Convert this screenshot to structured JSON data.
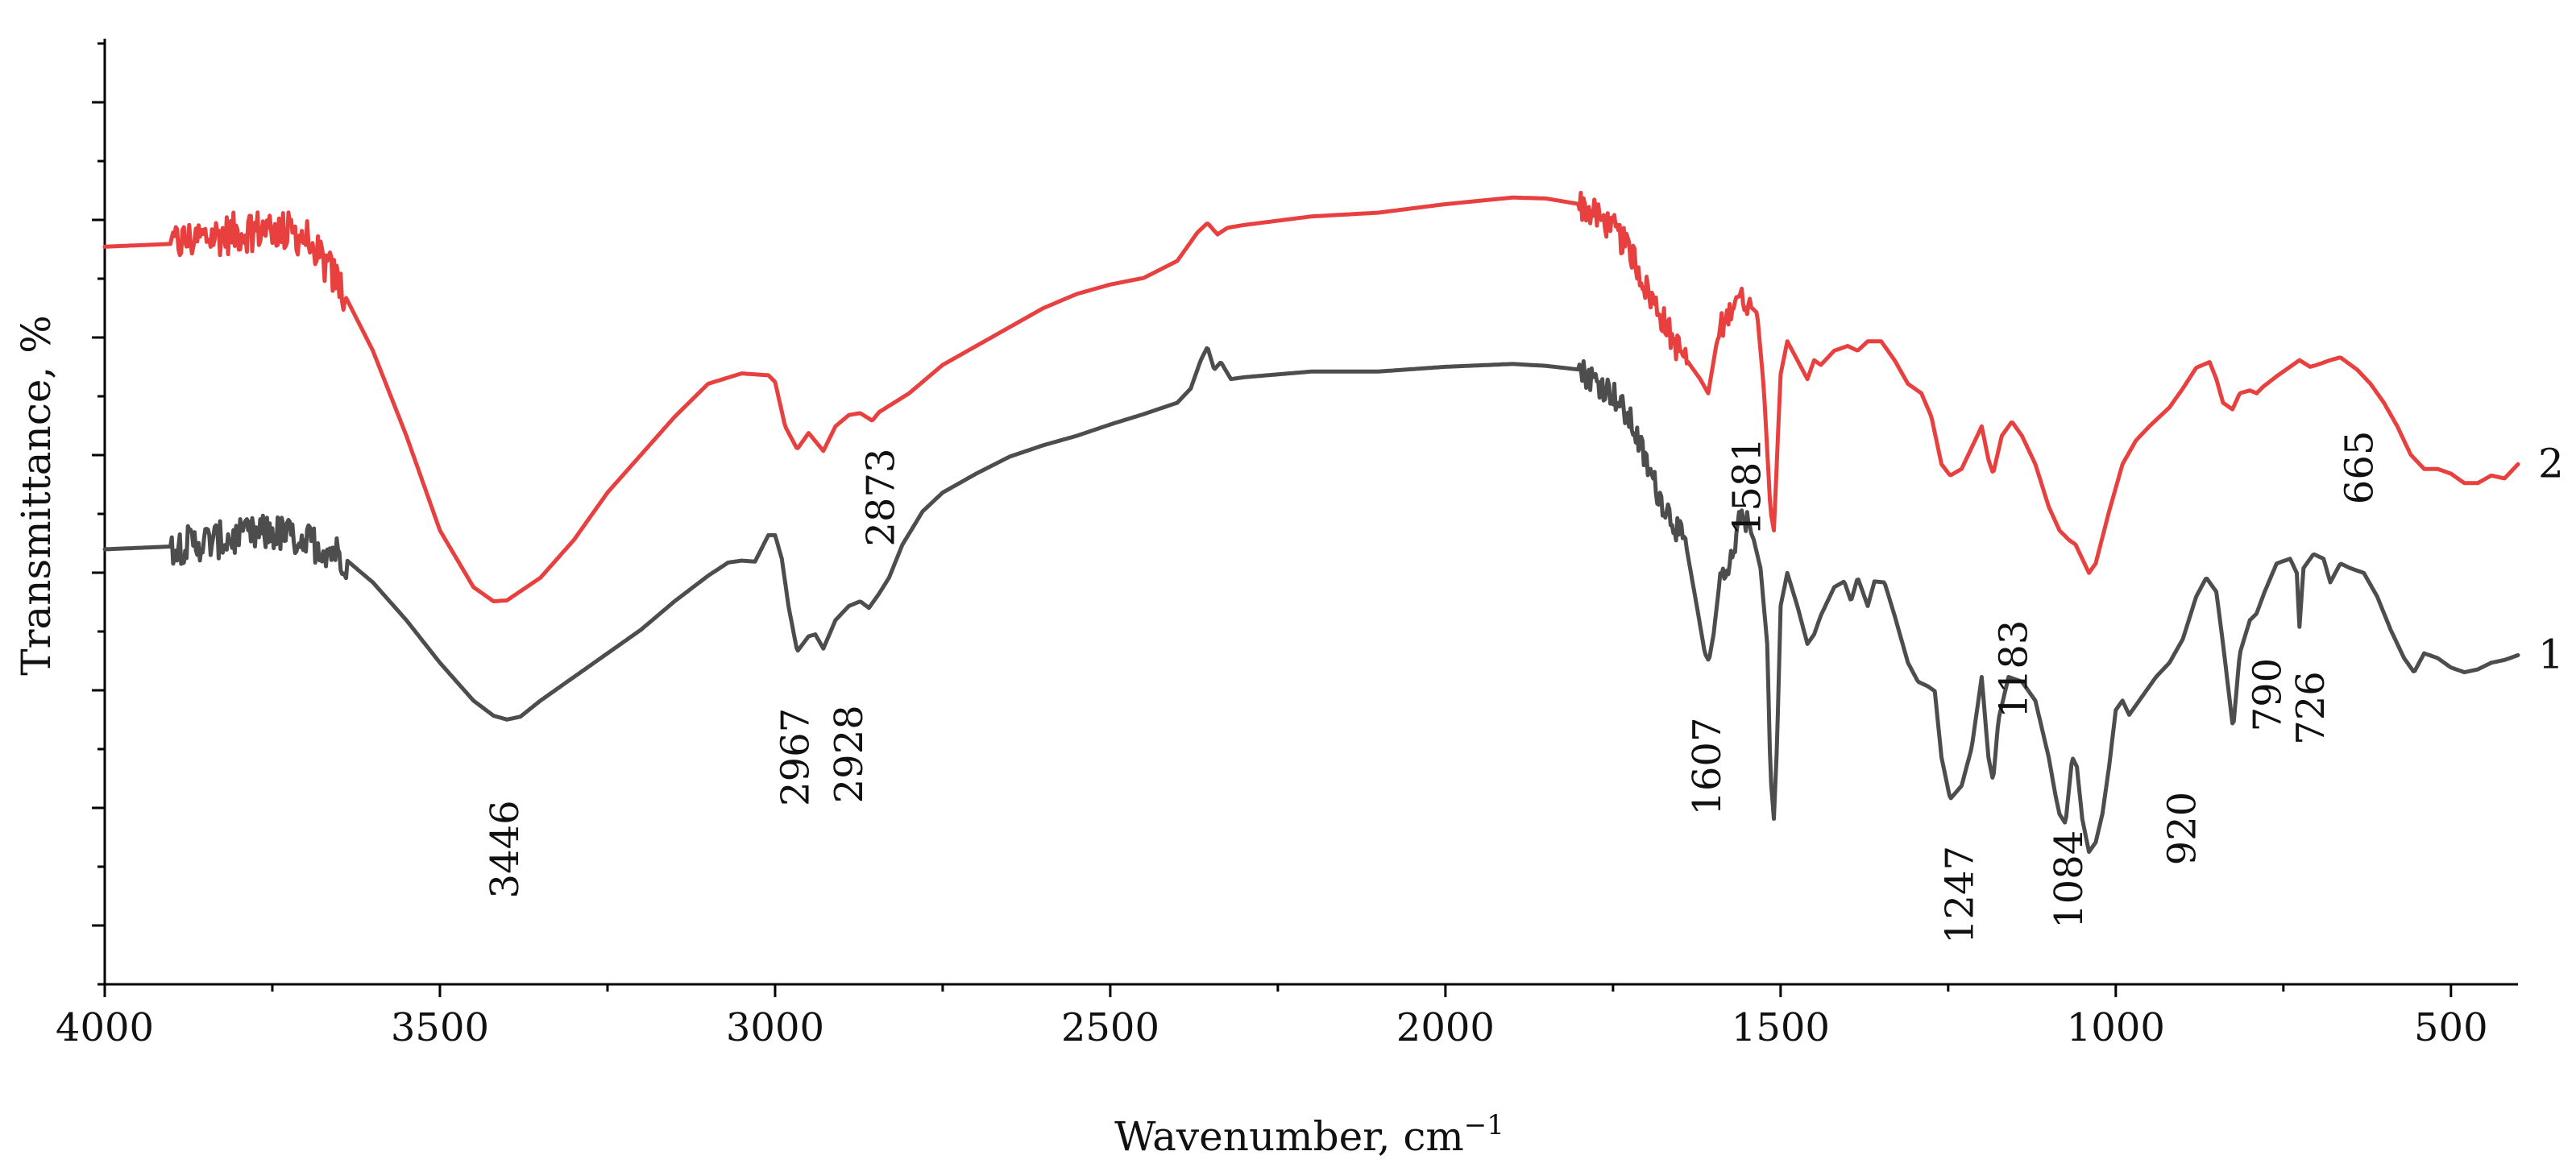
{
  "chart_data": {
    "type": "line",
    "title": "",
    "xlabel": "Wavenumber, cm",
    "xlabel_superscript": "−1",
    "ylabel": "Transmittance, %",
    "xlim": [
      4000,
      400
    ],
    "x_reversed": true,
    "xticks": [
      4000,
      3500,
      3000,
      2500,
      2000,
      1500,
      1000,
      500
    ],
    "ylim": [
      0,
      100
    ],
    "grid": false,
    "legend": "labels at right end of curves",
    "series": [
      {
        "name": "2",
        "color": "#e8403f",
        "noise_regions": [
          [
            3900,
            3640,
            2.2
          ],
          [
            1800,
            1640,
            1.6
          ],
          [
            1590,
            1545,
            1.2
          ]
        ],
        "points": [
          [
            4000,
            78
          ],
          [
            3900,
            78.3
          ],
          [
            3850,
            79
          ],
          [
            3800,
            79.5
          ],
          [
            3750,
            80
          ],
          [
            3700,
            79
          ],
          [
            3650,
            74
          ],
          [
            3600,
            67
          ],
          [
            3550,
            58
          ],
          [
            3500,
            48
          ],
          [
            3450,
            42
          ],
          [
            3420,
            40.5
          ],
          [
            3400,
            40.6
          ],
          [
            3350,
            43
          ],
          [
            3300,
            47
          ],
          [
            3250,
            52
          ],
          [
            3200,
            56
          ],
          [
            3150,
            60
          ],
          [
            3100,
            63.5
          ],
          [
            3050,
            64.6
          ],
          [
            3010,
            64.4
          ],
          [
            3000,
            63.7
          ],
          [
            2985,
            59
          ],
          [
            2967,
            56.6
          ],
          [
            2950,
            58.3
          ],
          [
            2928,
            56.4
          ],
          [
            2910,
            59
          ],
          [
            2890,
            60.2
          ],
          [
            2873,
            60.4
          ],
          [
            2855,
            59.6
          ],
          [
            2845,
            60.5
          ],
          [
            2800,
            62.5
          ],
          [
            2750,
            65.5
          ],
          [
            2700,
            67.5
          ],
          [
            2650,
            69.5
          ],
          [
            2600,
            71.5
          ],
          [
            2550,
            73
          ],
          [
            2500,
            74
          ],
          [
            2450,
            74.7
          ],
          [
            2400,
            76.5
          ],
          [
            2370,
            79.5
          ],
          [
            2355,
            80.5
          ],
          [
            2340,
            79.3
          ],
          [
            2325,
            80
          ],
          [
            2300,
            80.3
          ],
          [
            2200,
            81.2
          ],
          [
            2100,
            81.6
          ],
          [
            2000,
            82.5
          ],
          [
            1900,
            83.2
          ],
          [
            1850,
            83.1
          ],
          [
            1800,
            82.5
          ],
          [
            1750,
            80
          ],
          [
            1720,
            77
          ],
          [
            1700,
            73.5
          ],
          [
            1680,
            71
          ],
          [
            1660,
            68
          ],
          [
            1640,
            66
          ],
          [
            1620,
            64
          ],
          [
            1608,
            62.5
          ],
          [
            1595,
            68
          ],
          [
            1581,
            70.3
          ],
          [
            1565,
            73
          ],
          [
            1550,
            72
          ],
          [
            1535,
            71
          ],
          [
            1525,
            63
          ],
          [
            1515,
            50
          ],
          [
            1510,
            48
          ],
          [
            1500,
            64.5
          ],
          [
            1490,
            68
          ],
          [
            1475,
            66
          ],
          [
            1460,
            64
          ],
          [
            1450,
            66
          ],
          [
            1440,
            65.5
          ],
          [
            1420,
            67
          ],
          [
            1400,
            67.5
          ],
          [
            1385,
            67
          ],
          [
            1370,
            68
          ],
          [
            1350,
            68
          ],
          [
            1330,
            66
          ],
          [
            1310,
            63.5
          ],
          [
            1290,
            62.5
          ],
          [
            1275,
            60
          ],
          [
            1260,
            55
          ],
          [
            1247,
            53.8
          ],
          [
            1230,
            54.5
          ],
          [
            1200,
            59
          ],
          [
            1190,
            55.5
          ],
          [
            1183,
            54
          ],
          [
            1170,
            58
          ],
          [
            1155,
            59.5
          ],
          [
            1140,
            58
          ],
          [
            1120,
            55
          ],
          [
            1100,
            50.5
          ],
          [
            1084,
            48
          ],
          [
            1070,
            47
          ],
          [
            1060,
            46.5
          ],
          [
            1050,
            45
          ],
          [
            1040,
            43.5
          ],
          [
            1030,
            44.5
          ],
          [
            1010,
            50
          ],
          [
            990,
            55
          ],
          [
            970,
            57.5
          ],
          [
            950,
            59
          ],
          [
            920,
            61
          ],
          [
            900,
            63
          ],
          [
            880,
            65.2
          ],
          [
            860,
            65.8
          ],
          [
            850,
            64
          ],
          [
            840,
            61.5
          ],
          [
            826,
            60.8
          ],
          [
            815,
            62.5
          ],
          [
            800,
            62.8
          ],
          [
            790,
            62.5
          ],
          [
            780,
            63.2
          ],
          [
            760,
            64.3
          ],
          [
            740,
            65.3
          ],
          [
            726,
            66
          ],
          [
            710,
            65.3
          ],
          [
            700,
            65.5
          ],
          [
            680,
            66
          ],
          [
            665,
            66.3
          ],
          [
            640,
            65
          ],
          [
            620,
            63.5
          ],
          [
            600,
            61.5
          ],
          [
            580,
            59
          ],
          [
            560,
            56
          ],
          [
            540,
            54.5
          ],
          [
            520,
            54.5
          ],
          [
            500,
            54
          ],
          [
            480,
            53
          ],
          [
            460,
            53
          ],
          [
            440,
            53.8
          ],
          [
            420,
            53.5
          ],
          [
            400,
            55
          ]
        ]
      },
      {
        "name": "1",
        "color": "#4d4d4d",
        "noise_regions": [
          [
            3900,
            3640,
            2.0
          ],
          [
            1800,
            1640,
            1.5
          ],
          [
            1590,
            1545,
            1.2
          ]
        ],
        "points": [
          [
            4000,
            46
          ],
          [
            3900,
            46.3
          ],
          [
            3850,
            46.8
          ],
          [
            3800,
            47.2
          ],
          [
            3750,
            47.8
          ],
          [
            3700,
            47
          ],
          [
            3650,
            45.5
          ],
          [
            3600,
            42.5
          ],
          [
            3550,
            38.5
          ],
          [
            3500,
            34
          ],
          [
            3450,
            30
          ],
          [
            3420,
            28.4
          ],
          [
            3400,
            28
          ],
          [
            3380,
            28.3
          ],
          [
            3350,
            30
          ],
          [
            3300,
            32.5
          ],
          [
            3250,
            35
          ],
          [
            3200,
            37.5
          ],
          [
            3150,
            40.5
          ],
          [
            3100,
            43.2
          ],
          [
            3070,
            44.6
          ],
          [
            3050,
            44.8
          ],
          [
            3030,
            44.7
          ],
          [
            3010,
            47.5
          ],
          [
            3000,
            47.5
          ],
          [
            2990,
            45
          ],
          [
            2980,
            40
          ],
          [
            2967,
            35.2
          ],
          [
            2950,
            36.8
          ],
          [
            2940,
            37
          ],
          [
            2928,
            35.5
          ],
          [
            2910,
            38.5
          ],
          [
            2890,
            40
          ],
          [
            2873,
            40.5
          ],
          [
            2860,
            39.8
          ],
          [
            2845,
            41.3
          ],
          [
            2830,
            43
          ],
          [
            2810,
            46.5
          ],
          [
            2780,
            50
          ],
          [
            2750,
            52
          ],
          [
            2700,
            54
          ],
          [
            2650,
            55.8
          ],
          [
            2600,
            57
          ],
          [
            2550,
            58
          ],
          [
            2500,
            59.2
          ],
          [
            2450,
            60.3
          ],
          [
            2400,
            61.5
          ],
          [
            2380,
            63
          ],
          [
            2365,
            66
          ],
          [
            2355,
            67.4
          ],
          [
            2345,
            65
          ],
          [
            2335,
            65.8
          ],
          [
            2320,
            64
          ],
          [
            2300,
            64.2
          ],
          [
            2200,
            64.8
          ],
          [
            2100,
            64.8
          ],
          [
            2000,
            65.3
          ],
          [
            1900,
            65.6
          ],
          [
            1850,
            65.4
          ],
          [
            1800,
            65
          ],
          [
            1750,
            62.5
          ],
          [
            1720,
            59
          ],
          [
            1700,
            55
          ],
          [
            1680,
            51.5
          ],
          [
            1660,
            49
          ],
          [
            1640,
            46
          ],
          [
            1625,
            40
          ],
          [
            1613,
            35
          ],
          [
            1607,
            34.2
          ],
          [
            1600,
            37
          ],
          [
            1590,
            43.2
          ],
          [
            1581,
            42.5
          ],
          [
            1570,
            46
          ],
          [
            1560,
            50
          ],
          [
            1550,
            48.8
          ],
          [
            1540,
            47
          ],
          [
            1530,
            44
          ],
          [
            1520,
            36
          ],
          [
            1515,
            22
          ],
          [
            1510,
            17.5
          ],
          [
            1505,
            26
          ],
          [
            1500,
            40
          ],
          [
            1490,
            43.5
          ],
          [
            1475,
            40
          ],
          [
            1460,
            36
          ],
          [
            1450,
            37
          ],
          [
            1440,
            39
          ],
          [
            1420,
            42
          ],
          [
            1405,
            42.6
          ],
          [
            1395,
            40.5
          ],
          [
            1385,
            43
          ],
          [
            1370,
            40
          ],
          [
            1360,
            42.6
          ],
          [
            1345,
            42.5
          ],
          [
            1330,
            39
          ],
          [
            1310,
            34
          ],
          [
            1295,
            32
          ],
          [
            1280,
            31.5
          ],
          [
            1270,
            31
          ],
          [
            1260,
            24
          ],
          [
            1247,
            19.6
          ],
          [
            1230,
            21
          ],
          [
            1215,
            25
          ],
          [
            1200,
            32.5
          ],
          [
            1190,
            24
          ],
          [
            1183,
            21.5
          ],
          [
            1175,
            28
          ],
          [
            1160,
            32.5
          ],
          [
            1140,
            32
          ],
          [
            1120,
            30
          ],
          [
            1100,
            24
          ],
          [
            1090,
            20
          ],
          [
            1084,
            18
          ],
          [
            1075,
            17
          ],
          [
            1065,
            24
          ],
          [
            1058,
            23
          ],
          [
            1050,
            17.5
          ],
          [
            1040,
            14
          ],
          [
            1030,
            15
          ],
          [
            1020,
            18
          ],
          [
            1010,
            23
          ],
          [
            1000,
            29
          ],
          [
            990,
            30
          ],
          [
            980,
            28.5
          ],
          [
            960,
            30.5
          ],
          [
            940,
            32.5
          ],
          [
            920,
            34
          ],
          [
            900,
            36.5
          ],
          [
            880,
            41
          ],
          [
            865,
            43
          ],
          [
            850,
            41.5
          ],
          [
            840,
            36
          ],
          [
            825,
            27
          ],
          [
            815,
            35
          ],
          [
            800,
            38.5
          ],
          [
            790,
            39.2
          ],
          [
            778,
            41.5
          ],
          [
            760,
            44.5
          ],
          [
            740,
            45
          ],
          [
            730,
            43.5
          ],
          [
            726,
            37.8
          ],
          [
            720,
            44
          ],
          [
            705,
            45.5
          ],
          [
            690,
            45
          ],
          [
            680,
            42.5
          ],
          [
            665,
            44.5
          ],
          [
            650,
            44
          ],
          [
            630,
            43.5
          ],
          [
            610,
            41
          ],
          [
            590,
            37.5
          ],
          [
            570,
            34.5
          ],
          [
            555,
            33
          ],
          [
            540,
            35
          ],
          [
            520,
            34.5
          ],
          [
            500,
            33.5
          ],
          [
            480,
            33
          ],
          [
            460,
            33.3
          ],
          [
            440,
            34
          ],
          [
            420,
            34.3
          ],
          [
            400,
            34.8
          ]
        ]
      }
    ],
    "annotations": [
      {
        "label": "3446",
        "x": 3400,
        "series": "1"
      },
      {
        "label": "2967",
        "x": 2967,
        "series": "1"
      },
      {
        "label": "2928",
        "x": 2928,
        "series": "1"
      },
      {
        "label": "2873",
        "x": 2873,
        "series": "1"
      },
      {
        "label": "1607",
        "x": 1607,
        "series": "1"
      },
      {
        "label": "1581",
        "x": 1581,
        "series": "1"
      },
      {
        "label": "1247",
        "x": 1247,
        "series": "1"
      },
      {
        "label": "1183",
        "x": 1183,
        "series": "1"
      },
      {
        "label": "1084",
        "x": 1084,
        "series": "1"
      },
      {
        "label": "920",
        "x": 920,
        "series": "1"
      },
      {
        "label": "790",
        "x": 790,
        "series": "1"
      },
      {
        "label": "726",
        "x": 726,
        "series": "1"
      },
      {
        "label": "665",
        "x": 665,
        "series": "1"
      }
    ]
  }
}
